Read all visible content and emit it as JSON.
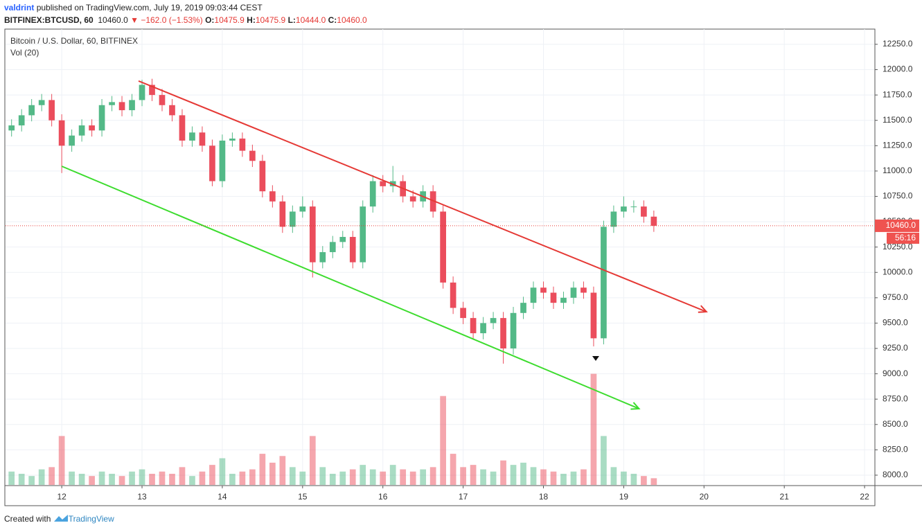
{
  "header": {
    "author": "valdrint",
    "published": "published on TradingView.com, July 19, 2019 09:03:44 CEST",
    "symbol": "BITFINEX:BTCUSD, 60",
    "last": "10460.0",
    "change": "−162.0 (−1.53%)",
    "ohlc": [
      {
        "label": "O:",
        "value": "10475.9"
      },
      {
        "label": "H:",
        "value": "10475.9"
      },
      {
        "label": "L:",
        "value": "10444.0"
      },
      {
        "label": "C:",
        "value": "10460.0"
      }
    ]
  },
  "footer": {
    "created": "Created with",
    "brand": "TradingView"
  },
  "chart_data": {
    "type": "candlestick",
    "title": "Bitcoin / U.S. Dollar, 60, BITFINEX",
    "volume_label": "Vol (20)",
    "up_color": "#53b987",
    "down_color": "#eb4d5c",
    "grid": true,
    "xlim": [
      11.3,
      22.12
    ],
    "ylim": [
      7904,
      12400
    ],
    "volume_lim": [
      0,
      250
    ],
    "xticks": [
      12,
      13,
      14,
      15,
      16,
      17,
      18,
      19,
      20,
      21,
      22
    ],
    "yticks": [
      {
        "value": 8000,
        "label": "8000.0"
      },
      {
        "value": 8250,
        "label": "8250.0"
      },
      {
        "value": 8500,
        "label": "8500.0"
      },
      {
        "value": 8750,
        "label": "8750.0"
      },
      {
        "value": 9000,
        "label": "9000.0"
      },
      {
        "value": 9250,
        "label": "9250.0"
      },
      {
        "value": 9500,
        "label": "9500.0"
      },
      {
        "value": 9750,
        "label": "9750.0"
      },
      {
        "value": 10000,
        "label": "10000.0"
      },
      {
        "value": 10250,
        "label": "10250.0"
      },
      {
        "value": 10500,
        "label": "10500.0"
      },
      {
        "value": 10750,
        "label": "10750.0"
      },
      {
        "value": 11000,
        "label": "11000.0"
      },
      {
        "value": 11250,
        "label": "11250.0"
      },
      {
        "value": 11500,
        "label": "11500.0"
      },
      {
        "value": 11750,
        "label": "11750.0"
      },
      {
        "value": 12000,
        "label": "12000.0"
      },
      {
        "value": 12250,
        "label": "12250.0"
      }
    ],
    "x": [
      11.375,
      11.5,
      11.625,
      11.75,
      11.875,
      12.0,
      12.125,
      12.25,
      12.375,
      12.5,
      12.625,
      12.75,
      12.875,
      13.0,
      13.125,
      13.25,
      13.375,
      13.5,
      13.625,
      13.75,
      13.875,
      14.0,
      14.125,
      14.25,
      14.375,
      14.5,
      14.625,
      14.75,
      14.875,
      15.0,
      15.125,
      15.25,
      15.375,
      15.5,
      15.625,
      15.75,
      15.875,
      16.0,
      16.125,
      16.25,
      16.375,
      16.5,
      16.625,
      16.75,
      16.875,
      17.0,
      17.125,
      17.25,
      17.375,
      17.5,
      17.625,
      17.75,
      17.875,
      18.0,
      18.125,
      18.25,
      18.375,
      18.5,
      18.625,
      18.75,
      18.875,
      19.0,
      19.125,
      19.25,
      19.375
    ],
    "open": [
      11400,
      11450,
      11550,
      11650,
      11700,
      11500,
      11250,
      11350,
      11450,
      11400,
      11650,
      11680,
      11600,
      11700,
      11850,
      11750,
      11650,
      11550,
      11300,
      11380,
      11250,
      10900,
      11300,
      11320,
      11200,
      11100,
      10800,
      10700,
      10450,
      10600,
      10650,
      10100,
      10200,
      10300,
      10350,
      10100,
      10650,
      10900,
      10850,
      10900,
      10750,
      10700,
      10800,
      10600,
      9900,
      9650,
      9550,
      9400,
      9500,
      9550,
      9250,
      9600,
      9700,
      9850,
      9800,
      9700,
      9750,
      9850,
      9800,
      9350,
      10450,
      10600,
      10650,
      10650,
      10550
    ],
    "high": [
      11510,
      11610,
      11710,
      11760,
      11760,
      11560,
      11410,
      11510,
      11510,
      11710,
      11740,
      11740,
      11760,
      11900,
      11910,
      11810,
      11710,
      11610,
      11440,
      11440,
      11310,
      11360,
      11380,
      11380,
      11260,
      11160,
      10860,
      10760,
      10660,
      10750,
      10710,
      10260,
      10360,
      10410,
      10410,
      10710,
      10960,
      10960,
      11050,
      10960,
      10810,
      10860,
      10860,
      10660,
      9960,
      9710,
      9610,
      9560,
      9610,
      9610,
      9660,
      9760,
      9910,
      9910,
      9860,
      9810,
      9910,
      9910,
      9860,
      10510,
      10660,
      10750,
      10710,
      10710,
      10610
    ],
    "low": [
      11340,
      11390,
      11490,
      11590,
      11440,
      10980,
      11190,
      11290,
      11340,
      11340,
      11590,
      11540,
      11540,
      11640,
      11690,
      11590,
      11490,
      11240,
      11240,
      11190,
      10850,
      10840,
      11240,
      11140,
      11040,
      10740,
      10640,
      10390,
      10390,
      10540,
      9950,
      10040,
      10140,
      10240,
      10040,
      10040,
      10590,
      10790,
      10790,
      10690,
      10640,
      10640,
      10540,
      9840,
      9590,
      9490,
      9340,
      9340,
      9440,
      9100,
      9190,
      9540,
      9640,
      9740,
      9640,
      9640,
      9690,
      9740,
      9270,
      9290,
      10390,
      10540,
      10590,
      10490,
      10400
    ],
    "close": [
      11450,
      11550,
      11650,
      11700,
      11500,
      11250,
      11350,
      11450,
      11400,
      11650,
      11680,
      11600,
      11700,
      11850,
      11750,
      11650,
      11550,
      11300,
      11380,
      11250,
      10900,
      11300,
      11320,
      11200,
      11100,
      10800,
      10700,
      10450,
      10600,
      10650,
      10100,
      10200,
      10300,
      10350,
      10100,
      10650,
      10900,
      10850,
      10900,
      10750,
      10700,
      10800,
      10600,
      9900,
      9650,
      9550,
      9400,
      9500,
      9550,
      9250,
      9600,
      9700,
      9850,
      9800,
      9700,
      9750,
      9850,
      9800,
      9350,
      10450,
      10600,
      10650,
      10650,
      10550,
      10460
    ],
    "volume": [
      30,
      25,
      20,
      35,
      40,
      110,
      30,
      25,
      20,
      30,
      25,
      20,
      30,
      35,
      25,
      30,
      25,
      40,
      20,
      30,
      45,
      60,
      25,
      30,
      35,
      70,
      50,
      65,
      40,
      30,
      110,
      40,
      25,
      30,
      35,
      45,
      35,
      30,
      45,
      35,
      30,
      35,
      40,
      200,
      70,
      40,
      45,
      35,
      30,
      55,
      45,
      50,
      40,
      35,
      30,
      25,
      30,
      35,
      250,
      110,
      40,
      30,
      25,
      20,
      15
    ],
    "trendlines": [
      {
        "color": "#e53935",
        "x": [
          12.957,
          20.03
        ],
        "y": [
          11888,
          9612
        ]
      },
      {
        "color": "#3ddc2e",
        "x": [
          12.0,
          19.19
        ],
        "y": [
          11047,
          8656
        ]
      }
    ],
    "last_price": {
      "value": 10460,
      "label": "10460.0"
    },
    "countdown": "56:16"
  }
}
